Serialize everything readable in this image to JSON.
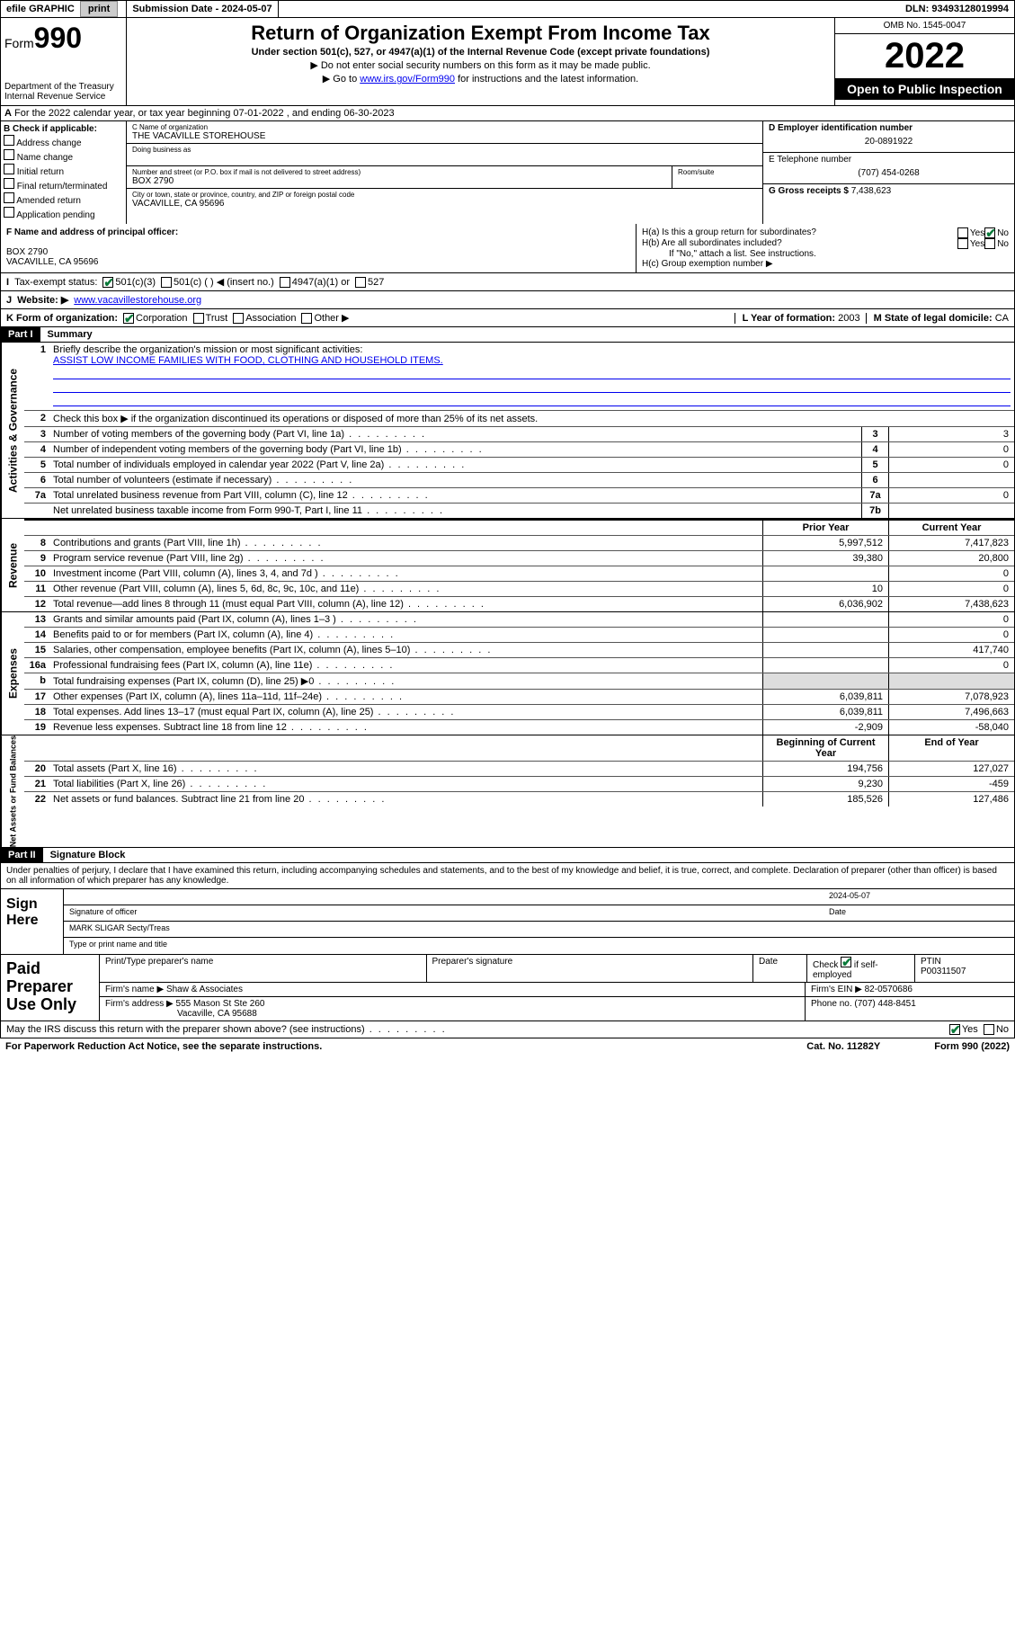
{
  "topbar": {
    "efile": "efile GRAPHIC",
    "print": "print",
    "subdate_label": "Submission Date - ",
    "subdate": "2024-05-07",
    "dln_label": "DLN: ",
    "dln": "93493128019994"
  },
  "header": {
    "form_label": "Form",
    "form_num": "990",
    "dept": "Department of the Treasury",
    "irs": "Internal Revenue Service",
    "title": "Return of Organization Exempt From Income Tax",
    "sub": "Under section 501(c), 527, or 4947(a)(1) of the Internal Revenue Code (except private foundations)",
    "note1": "▶ Do not enter social security numbers on this form as it may be made public.",
    "note2_pre": "▶ Go to ",
    "note2_link": "www.irs.gov/Form990",
    "note2_post": " for instructions and the latest information.",
    "omb": "OMB No. 1545-0047",
    "year": "2022",
    "open": "Open to Public Inspection"
  },
  "lineA": "For the 2022 calendar year, or tax year beginning 07-01-2022   , and ending 06-30-2023",
  "B": {
    "hdr": "B Check if applicable:",
    "opts": [
      "Address change",
      "Name change",
      "Initial return",
      "Final return/terminated",
      "Amended return",
      "Application pending"
    ]
  },
  "C": {
    "name_lbl": "C Name of organization",
    "name": "THE VACAVILLE STOREHOUSE",
    "dba_lbl": "Doing business as",
    "street_lbl": "Number and street (or P.O. box if mail is not delivered to street address)",
    "room_lbl": "Room/suite",
    "street": "BOX 2790",
    "city_lbl": "City or town, state or province, country, and ZIP or foreign postal code",
    "city": "VACAVILLE, CA   95696"
  },
  "D": {
    "lbl": "D Employer identification number",
    "val": "20-0891922"
  },
  "E": {
    "lbl": "E Telephone number",
    "val": "(707) 454-0268"
  },
  "G": {
    "lbl": "G Gross receipts $",
    "val": "7,438,623"
  },
  "F": {
    "lbl": "F  Name and address of principal officer:",
    "line1": "BOX 2790",
    "line2": "VACAVILLE, CA   95696"
  },
  "H": {
    "a": "H(a)  Is this a group return for subordinates?",
    "b": "H(b)  Are all subordinates included?",
    "bnote": "If \"No,\" attach a list. See instructions.",
    "c": "H(c)  Group exemption number ▶"
  },
  "I": {
    "lbl": "Tax-exempt status:",
    "o1": "501(c)(3)",
    "o2": "501(c) (  ) ◀ (insert no.)",
    "o3": "4947(a)(1) or",
    "o4": "527"
  },
  "J": {
    "lbl": "Website: ▶",
    "val": "www.vacavillestorehouse.org"
  },
  "K": {
    "lbl": "K Form of organization:",
    "o1": "Corporation",
    "o2": "Trust",
    "o3": "Association",
    "o4": "Other ▶"
  },
  "L": {
    "lbl": "L Year of formation:",
    "val": "2003"
  },
  "M": {
    "lbl": "M State of legal domicile:",
    "val": "CA"
  },
  "partI": {
    "hdr": "Part I",
    "title": "Summary"
  },
  "summary": {
    "l1": "Briefly describe the organization's mission or most significant activities:",
    "mission": "ASSIST LOW INCOME FAMILIES WITH FOOD, CLOTHING AND HOUSEHOLD ITEMS.",
    "l2": "Check this box ▶      if the organization discontinued its operations or disposed of more than 25% of its net assets.",
    "rows_gov": [
      {
        "n": "3",
        "t": "Number of voting members of the governing body (Part VI, line 1a)",
        "b": "3",
        "v": "3"
      },
      {
        "n": "4",
        "t": "Number of independent voting members of the governing body (Part VI, line 1b)",
        "b": "4",
        "v": "0"
      },
      {
        "n": "5",
        "t": "Total number of individuals employed in calendar year 2022 (Part V, line 2a)",
        "b": "5",
        "v": "0"
      },
      {
        "n": "6",
        "t": "Total number of volunteers (estimate if necessary)",
        "b": "6",
        "v": ""
      },
      {
        "n": "7a",
        "t": "Total unrelated business revenue from Part VIII, column (C), line 12",
        "b": "7a",
        "v": "0"
      },
      {
        "n": "",
        "t": "Net unrelated business taxable income from Form 990-T, Part I, line 11",
        "b": "7b",
        "v": ""
      }
    ],
    "col_prior": "Prior Year",
    "col_curr": "Current Year",
    "rev": [
      {
        "n": "8",
        "t": "Contributions and grants (Part VIII, line 1h)",
        "p": "5,997,512",
        "c": "7,417,823"
      },
      {
        "n": "9",
        "t": "Program service revenue (Part VIII, line 2g)",
        "p": "39,380",
        "c": "20,800"
      },
      {
        "n": "10",
        "t": "Investment income (Part VIII, column (A), lines 3, 4, and 7d )",
        "p": "",
        "c": "0"
      },
      {
        "n": "11",
        "t": "Other revenue (Part VIII, column (A), lines 5, 6d, 8c, 9c, 10c, and 11e)",
        "p": "10",
        "c": "0"
      },
      {
        "n": "12",
        "t": "Total revenue—add lines 8 through 11 (must equal Part VIII, column (A), line 12)",
        "p": "6,036,902",
        "c": "7,438,623"
      }
    ],
    "exp": [
      {
        "n": "13",
        "t": "Grants and similar amounts paid (Part IX, column (A), lines 1–3 )",
        "p": "",
        "c": "0"
      },
      {
        "n": "14",
        "t": "Benefits paid to or for members (Part IX, column (A), line 4)",
        "p": "",
        "c": "0"
      },
      {
        "n": "15",
        "t": "Salaries, other compensation, employee benefits (Part IX, column (A), lines 5–10)",
        "p": "",
        "c": "417,740"
      },
      {
        "n": "16a",
        "t": "Professional fundraising fees (Part IX, column (A), line 11e)",
        "p": "",
        "c": "0"
      },
      {
        "n": "b",
        "t": "Total fundraising expenses (Part IX, column (D), line 25) ▶0",
        "p": "shade",
        "c": "shade"
      },
      {
        "n": "17",
        "t": "Other expenses (Part IX, column (A), lines 11a–11d, 11f–24e)",
        "p": "6,039,811",
        "c": "7,078,923"
      },
      {
        "n": "18",
        "t": "Total expenses. Add lines 13–17 (must equal Part IX, column (A), line 25)",
        "p": "6,039,811",
        "c": "7,496,663"
      },
      {
        "n": "19",
        "t": "Revenue less expenses. Subtract line 18 from line 12",
        "p": "-2,909",
        "c": "-58,040"
      }
    ],
    "col_bcy": "Beginning of Current Year",
    "col_eoy": "End of Year",
    "net": [
      {
        "n": "20",
        "t": "Total assets (Part X, line 16)",
        "p": "194,756",
        "c": "127,027"
      },
      {
        "n": "21",
        "t": "Total liabilities (Part X, line 26)",
        "p": "9,230",
        "c": "-459"
      },
      {
        "n": "22",
        "t": "Net assets or fund balances. Subtract line 21 from line 20",
        "p": "185,526",
        "c": "127,486"
      }
    ]
  },
  "sides": {
    "gov": "Activities & Governance",
    "rev": "Revenue",
    "exp": "Expenses",
    "net": "Net Assets or Fund Balances"
  },
  "partII": {
    "hdr": "Part II",
    "title": "Signature Block"
  },
  "perjury": "Under penalties of perjury, I declare that I have examined this return, including accompanying schedules and statements, and to the best of my knowledge and belief, it is true, correct, and complete. Declaration of preparer (other than officer) is based on all information of which preparer has any knowledge.",
  "sign": {
    "here": "Sign Here",
    "sig_lbl": "Signature of officer",
    "date_lbl": "Date",
    "date": "2024-05-07",
    "name": "MARK SLIGAR  Secty/Treas",
    "name_lbl": "Type or print name and title"
  },
  "prep": {
    "title": "Paid Preparer Use Only",
    "h1": "Print/Type preparer's name",
    "h2": "Preparer's signature",
    "h3": "Date",
    "h4": "Check       if self-employed",
    "h5": "PTIN",
    "ptin": "P00311507",
    "firm_lbl": "Firm's name   ▶",
    "firm": "Shaw & Associates",
    "ein_lbl": "Firm's EIN ▶",
    "ein": "82-0570686",
    "addr_lbl": "Firm's address ▶",
    "addr1": "555 Mason St Ste 260",
    "addr2": "Vacaville, CA   95688",
    "phone_lbl": "Phone no.",
    "phone": "(707) 448-8451"
  },
  "footer": {
    "q": "May the IRS discuss this return with the preparer shown above? (see instructions)",
    "yes": "Yes",
    "no": "No",
    "pra": "For Paperwork Reduction Act Notice, see the separate instructions.",
    "cat": "Cat. No. 11282Y",
    "form": "Form 990 (2022)"
  }
}
